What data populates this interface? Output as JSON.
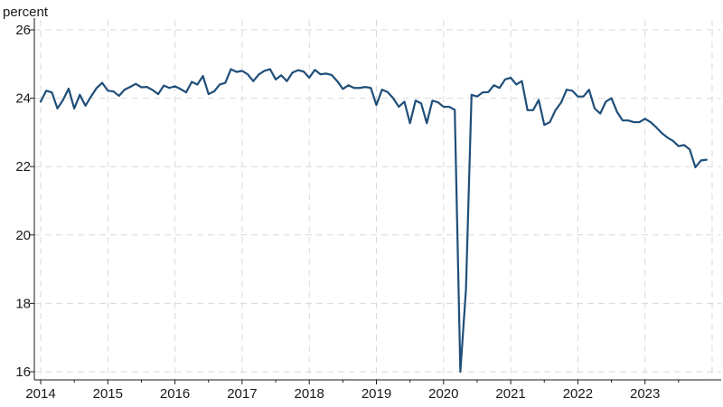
{
  "chart_data": {
    "type": "line",
    "title": "",
    "xlabel": "",
    "ylabel": "percent",
    "xlim": [
      2014.0,
      2024.0
    ],
    "ylim": [
      16,
      26
    ],
    "y_ticks": [
      16,
      18,
      20,
      22,
      24,
      26
    ],
    "x_ticks": [
      2014,
      2015,
      2016,
      2017,
      2018,
      2019,
      2020,
      2021,
      2022,
      2023
    ],
    "x_tick_labels": [
      "2014",
      "2015",
      "2016",
      "2017",
      "2018",
      "2019",
      "2020",
      "2021",
      "2022",
      "2023"
    ],
    "grid": "dashed horizontal and vertical",
    "line_color": "#1f4e79",
    "frequency": "monthly, starting January 2014",
    "series": [
      {
        "values": [
          23.9,
          24.22,
          24.17,
          23.7,
          23.95,
          24.28,
          23.7,
          24.1,
          23.78,
          24.05,
          24.3,
          24.45,
          24.22,
          24.2,
          24.07,
          24.25,
          24.33,
          24.42,
          24.32,
          24.33,
          24.24,
          24.12,
          24.37,
          24.3,
          24.35,
          24.27,
          24.17,
          24.48,
          24.4,
          24.65,
          24.12,
          24.2,
          24.4,
          24.45,
          24.85,
          24.77,
          24.8,
          24.7,
          24.5,
          24.7,
          24.8,
          24.85,
          24.55,
          24.67,
          24.5,
          24.75,
          24.82,
          24.78,
          24.6,
          24.83,
          24.7,
          24.72,
          24.68,
          24.5,
          24.27,
          24.38,
          24.3,
          24.3,
          24.33,
          24.3,
          23.8,
          24.25,
          24.18,
          24.0,
          23.75,
          23.9,
          23.27,
          23.93,
          23.85,
          23.27,
          23.93,
          23.88,
          23.75,
          23.75,
          23.66,
          16.0,
          18.4,
          24.1,
          24.05,
          24.17,
          24.18,
          24.38,
          24.3,
          24.55,
          24.6,
          24.4,
          24.5,
          23.65,
          23.65,
          23.95,
          23.22,
          23.3,
          23.65,
          23.87,
          24.25,
          24.22,
          24.05,
          24.05,
          24.25,
          23.7,
          23.55,
          23.9,
          24.0,
          23.6,
          23.35,
          23.35,
          23.3,
          23.3,
          23.4,
          23.3,
          23.15,
          22.98,
          22.85,
          22.75,
          22.6,
          22.63,
          22.5,
          21.98,
          22.18,
          22.2
        ]
      }
    ]
  }
}
